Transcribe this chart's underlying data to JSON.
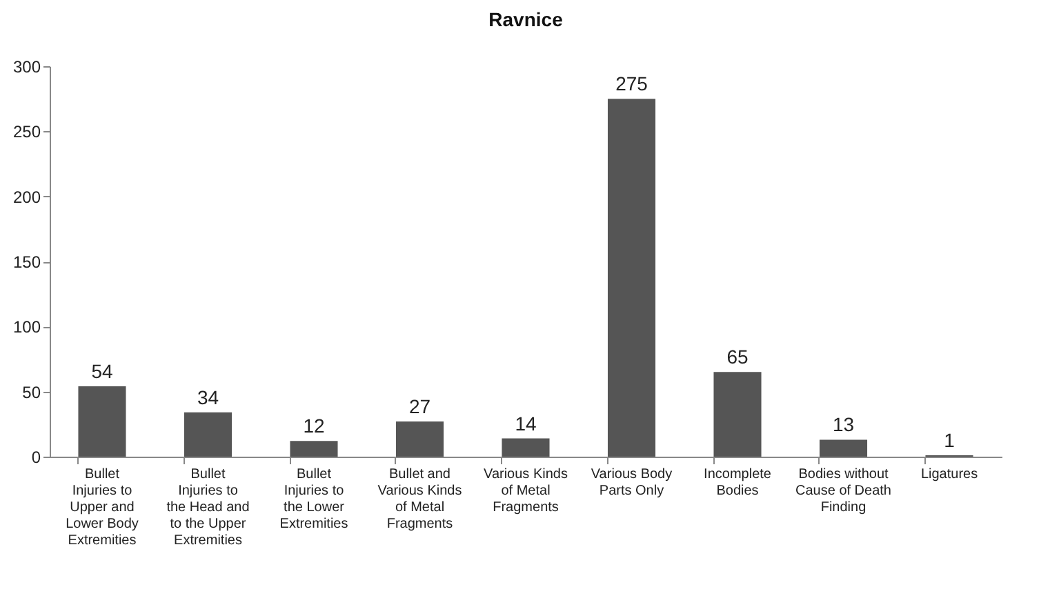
{
  "chart_data": {
    "type": "bar",
    "title": "Ravnice",
    "categories": [
      "Bullet Injuries to Upper and Lower Body Extremities",
      "Bullet Injuries to the Head and to the Upper Extremities",
      "Bullet Injuries to the Lower Extremities",
      "Bullet and Various Kinds of Metal Fragments",
      "Various Kinds of Metal Fragments",
      "Various Body Parts Only",
      "Incomplete Bodies",
      "Bodies without Cause of Death Finding",
      "Ligatures"
    ],
    "values": [
      54,
      34,
      12,
      27,
      14,
      275,
      65,
      13,
      1
    ],
    "color": "#555555",
    "ylim": [
      0,
      300
    ],
    "yticks": [
      0,
      50,
      100,
      150,
      200,
      250,
      300
    ],
    "grid": false,
    "data_labels": true
  }
}
